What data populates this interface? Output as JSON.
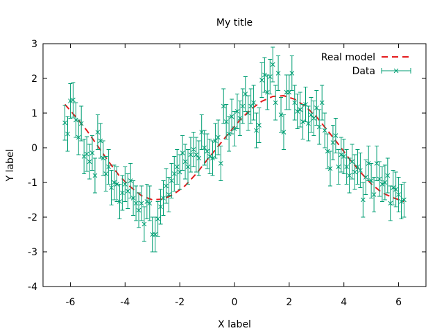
{
  "chart_data": {
    "type": "scatter",
    "title": "My title",
    "xlabel": "X label",
    "ylabel": "Y label",
    "xlim": [
      -7,
      7
    ],
    "ylim": [
      -4,
      3
    ],
    "xticks": [
      -6,
      -4,
      -2,
      0,
      2,
      4,
      6
    ],
    "yticks": [
      -4,
      -3,
      -2,
      -1,
      0,
      1,
      2,
      3
    ],
    "grid": false,
    "legend_position": "top-right",
    "series": [
      {
        "name": "Real model",
        "kind": "line",
        "style": "dashed",
        "color": "#e41a1c",
        "x": [
          -6.2,
          -5.8,
          -5.4,
          -5.0,
          -4.6,
          -4.2,
          -3.8,
          -3.4,
          -3.0,
          -2.6,
          -2.2,
          -1.8,
          -1.4,
          -1.0,
          -0.6,
          -0.2,
          0.2,
          0.6,
          1.0,
          1.4,
          1.8,
          2.2,
          2.6,
          3.0,
          3.4,
          3.8,
          4.2,
          4.6,
          5.0,
          5.4,
          5.8,
          6.2
        ],
        "y": [
          1.25,
          0.89,
          0.5,
          0.05,
          -0.4,
          -0.82,
          -1.13,
          -1.38,
          -1.5,
          -1.48,
          -1.33,
          -1.09,
          -0.75,
          -0.35,
          0.04,
          0.43,
          0.8,
          1.11,
          1.34,
          1.48,
          1.5,
          1.4,
          1.19,
          0.89,
          0.5,
          0.1,
          -0.32,
          -0.7,
          -1.04,
          -1.3,
          -1.44,
          -1.55
        ]
      },
      {
        "name": "Data",
        "kind": "errorbar",
        "color": "#009e73",
        "error": 0.5,
        "x": [
          -6.2,
          -6.1,
          -6.0,
          -5.9,
          -5.8,
          -5.7,
          -5.6,
          -5.5,
          -5.4,
          -5.3,
          -5.2,
          -5.1,
          -5.0,
          -4.9,
          -4.8,
          -4.7,
          -4.6,
          -4.5,
          -4.4,
          -4.3,
          -4.2,
          -4.1,
          -4.0,
          -3.9,
          -3.8,
          -3.7,
          -3.6,
          -3.5,
          -3.4,
          -3.3,
          -3.2,
          -3.1,
          -3.0,
          -2.9,
          -2.8,
          -2.7,
          -2.6,
          -2.5,
          -2.4,
          -2.3,
          -2.2,
          -2.1,
          -2.0,
          -1.9,
          -1.8,
          -1.7,
          -1.6,
          -1.5,
          -1.4,
          -1.3,
          -1.2,
          -1.1,
          -1.0,
          -0.9,
          -0.8,
          -0.7,
          -0.6,
          -0.5,
          -0.4,
          -0.3,
          -0.2,
          -0.1,
          0.0,
          0.1,
          0.2,
          0.3,
          0.4,
          0.5,
          0.6,
          0.7,
          0.8,
          0.9,
          1.0,
          1.1,
          1.2,
          1.3,
          1.4,
          1.5,
          1.6,
          1.7,
          1.8,
          1.9,
          2.0,
          2.1,
          2.2,
          2.3,
          2.4,
          2.5,
          2.6,
          2.7,
          2.8,
          2.9,
          3.0,
          3.1,
          3.2,
          3.3,
          3.4,
          3.5,
          3.6,
          3.7,
          3.8,
          3.9,
          4.0,
          4.1,
          4.2,
          4.3,
          4.4,
          4.5,
          4.6,
          4.7,
          4.8,
          4.9,
          5.0,
          5.1,
          5.2,
          5.3,
          5.4,
          5.5,
          5.6,
          5.7,
          5.8,
          5.9,
          6.0,
          6.1,
          6.2
        ],
        "y": [
          0.72,
          0.4,
          1.35,
          1.38,
          0.8,
          0.3,
          0.7,
          -0.25,
          -0.18,
          -0.4,
          -0.15,
          -0.8,
          0.45,
          0.2,
          -0.3,
          -0.75,
          -0.55,
          -1.15,
          -1.0,
          -1.05,
          -1.55,
          -1.3,
          -1.05,
          -1.25,
          -0.95,
          -1.45,
          -1.6,
          -1.8,
          -1.6,
          -2.2,
          -1.55,
          -1.6,
          -2.5,
          -2.5,
          -2.05,
          -1.7,
          -1.45,
          -1.1,
          -1.35,
          -0.95,
          -0.75,
          -0.55,
          -0.7,
          -0.15,
          -0.4,
          -0.55,
          -0.2,
          -0.05,
          -0.2,
          -0.3,
          0.45,
          0.0,
          -0.1,
          -0.25,
          -0.3,
          0.2,
          0.3,
          -0.45,
          1.2,
          0.75,
          0.4,
          0.9,
          0.55,
          1.05,
          0.85,
          1.2,
          1.55,
          1.0,
          1.2,
          1.3,
          0.5,
          0.65,
          1.95,
          2.1,
          1.6,
          2.05,
          2.4,
          1.3,
          2.15,
          0.95,
          0.45,
          1.6,
          1.6,
          2.15,
          1.3,
          1.05,
          1.1,
          0.75,
          1.25,
          0.7,
          0.95,
          0.85,
          1.15,
          0.6,
          1.3,
          0.5,
          -0.1,
          -0.6,
          0.15,
          0.35,
          -0.55,
          -0.2,
          -0.25,
          -0.55,
          -0.8,
          -0.4,
          -0.7,
          -0.55,
          -0.65,
          -1.5,
          -0.85,
          -0.45,
          -0.95,
          -1.35,
          -0.45,
          -0.9,
          -1.05,
          -1.0,
          -0.8,
          -1.6,
          -1.15,
          -1.2,
          -1.35,
          -1.55,
          -1.5
        ]
      }
    ]
  }
}
